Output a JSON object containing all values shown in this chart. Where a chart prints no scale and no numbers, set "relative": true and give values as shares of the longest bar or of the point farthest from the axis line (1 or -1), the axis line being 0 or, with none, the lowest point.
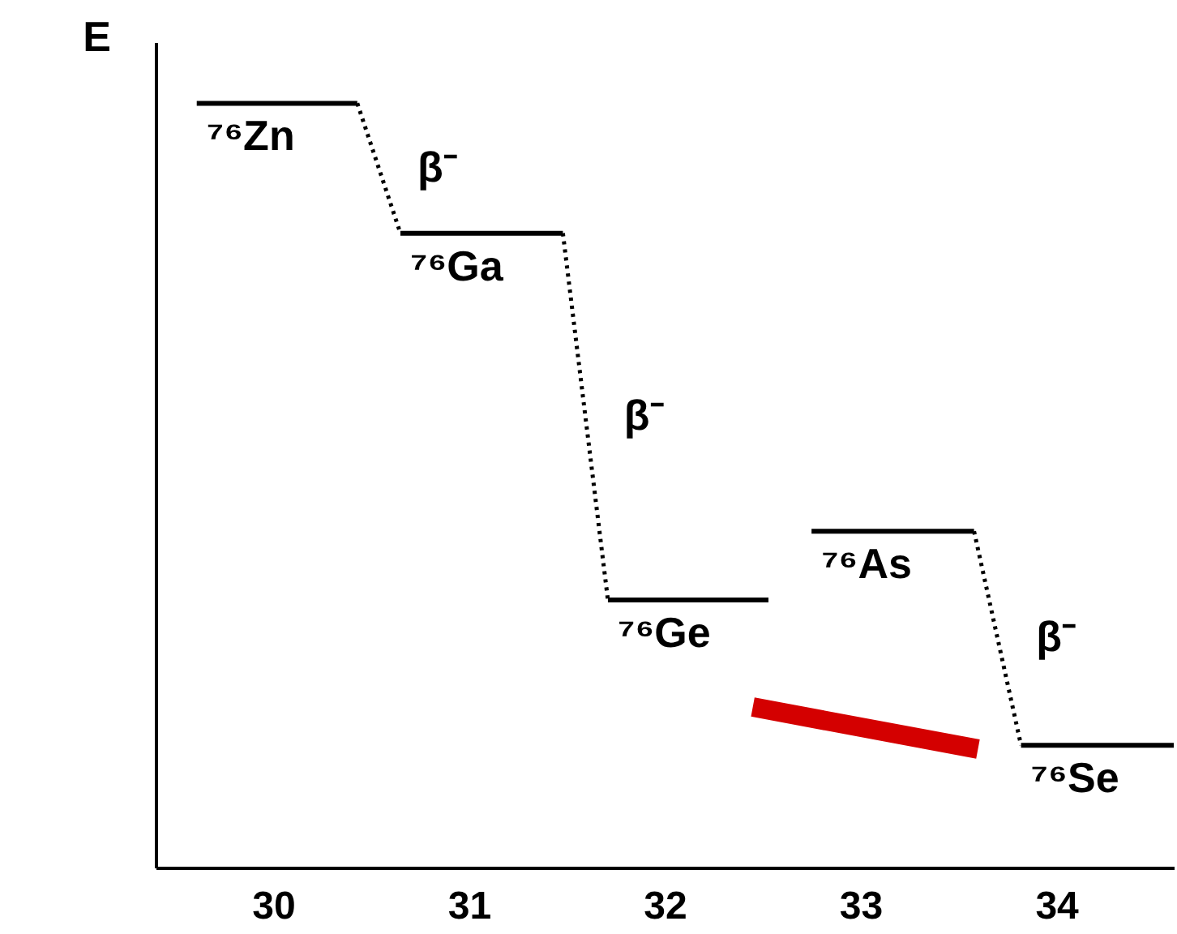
{
  "chart_data": {
    "type": "line",
    "relative": true,
    "ylabel": "E",
    "xlim": [
      29.4,
      34.6
    ],
    "xticks": [
      30,
      31,
      32,
      33,
      34
    ],
    "grid": false,
    "series": [
      {
        "name": "⁷⁶Zn",
        "color": "#000000",
        "x": [
          29.61,
          30.43
        ],
        "values": [
          1,
          1
        ]
      },
      {
        "name": "⁷⁶Ga",
        "color": "#000000",
        "x": [
          30.65,
          31.48
        ],
        "values": [
          0.83,
          0.83
        ]
      },
      {
        "name": "⁷⁶Ge",
        "color": "#000000",
        "x": [
          31.71,
          32.53
        ],
        "values": [
          0.35,
          0.35
        ]
      },
      {
        "name": "⁷⁶As",
        "color": "#000000",
        "x": [
          32.75,
          33.58
        ],
        "values": [
          0.44,
          0.44
        ]
      },
      {
        "name": "⁷⁶Se",
        "color": "#000000",
        "x": [
          33.82,
          34.6
        ],
        "values": [
          0.16,
          0.16
        ]
      },
      {
        "color": "#000000",
        "line_style": "dotted",
        "x": [
          30.43,
          30.65
        ],
        "values": [
          1,
          0.83
        ]
      },
      {
        "color": "#000000",
        "line_style": "dotted",
        "x": [
          31.48,
          31.71
        ],
        "values": [
          0.83,
          0.35
        ]
      },
      {
        "color": "#000000",
        "line_style": "dotted",
        "x": [
          33.58,
          33.82
        ],
        "values": [
          0.44,
          0.16
        ]
      },
      {
        "color": "#d40000",
        "x": [
          32.45,
          33.6
        ],
        "values": [
          0.21,
          0.155
        ]
      }
    ],
    "annotations": [
      "β⁻",
      "β⁻",
      "β⁻"
    ]
  }
}
